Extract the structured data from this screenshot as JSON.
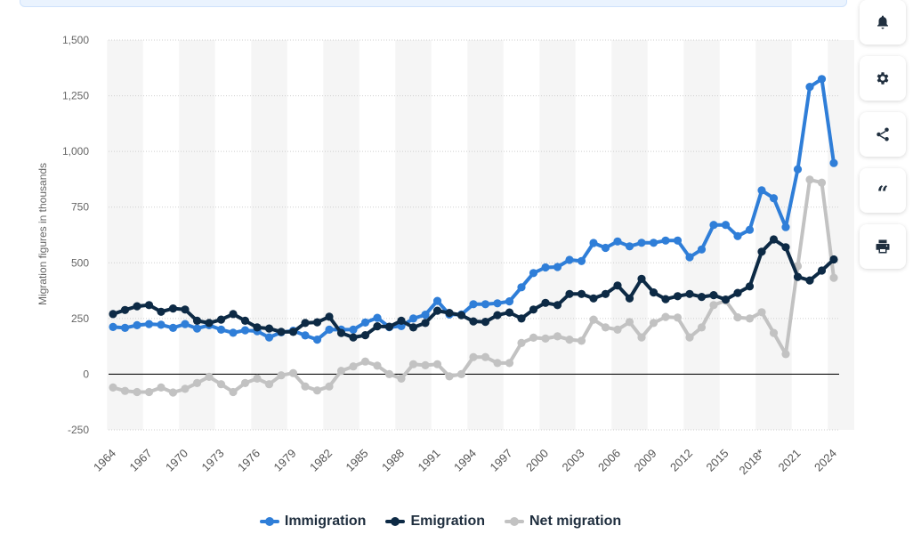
{
  "chart_data": {
    "type": "line",
    "ylabel": "Migration figures in thousands",
    "xlabel": "",
    "ylim": [
      -250,
      1500
    ],
    "yticks": [
      -250,
      0,
      250,
      500,
      750,
      1000,
      1250,
      1500
    ],
    "ytick_labels": [
      "-250",
      "0",
      "250",
      "500",
      "750",
      "1,000",
      "1,250",
      "1,500"
    ],
    "xtick_labels": [
      "1964",
      "1967",
      "1970",
      "1973",
      "1976",
      "1979",
      "1982",
      "1985",
      "1988",
      "1991",
      "1994",
      "1997",
      "2000",
      "2003",
      "2006",
      "2009",
      "2012",
      "2015",
      "2018*",
      "2021",
      "2024"
    ],
    "x": [
      "1964",
      "1965",
      "1966",
      "1967",
      "1968",
      "1969",
      "1970",
      "1971",
      "1972",
      "1973",
      "1974",
      "1975",
      "1976",
      "1977",
      "1978",
      "1979",
      "1980",
      "1981",
      "1982",
      "1983",
      "1984",
      "1985",
      "1986",
      "1987",
      "1988",
      "1989",
      "1990",
      "1991",
      "1992",
      "1993",
      "1994",
      "1995",
      "1996",
      "1997",
      "1998",
      "1999",
      "2000",
      "2001",
      "2002",
      "2003",
      "2004",
      "2005",
      "2006",
      "2007",
      "2008",
      "2009",
      "2010",
      "2011",
      "2012",
      "2013",
      "2014",
      "2015",
      "2016",
      "2017",
      "2018*",
      "2019",
      "2020",
      "2021",
      "2022",
      "2023",
      "2024"
    ],
    "grid": true,
    "alternating_bands": true,
    "legend_position": "bottom-center",
    "series": [
      {
        "name": "Immigration",
        "color": "#2f7ed8",
        "values": [
          212,
          208,
          220,
          225,
          222,
          208,
          225,
          205,
          220,
          200,
          186,
          197,
          193,
          165,
          188,
          195,
          174,
          155,
          200,
          200,
          200,
          232,
          253,
          211,
          216,
          250,
          267,
          329,
          268,
          268,
          314,
          314,
          318,
          327,
          390,
          454,
          479,
          481,
          513,
          508,
          589,
          567,
          596,
          574,
          590,
          590,
          600,
          600,
          525,
          560,
          670,
          670,
          620,
          648,
          825,
          790,
          660,
          920,
          1290,
          1325,
          948
        ]
      },
      {
        "name": "Emigration",
        "color": "#0d2a45",
        "values": [
          270,
          288,
          305,
          310,
          280,
          295,
          290,
          240,
          230,
          245,
          270,
          240,
          210,
          205,
          190,
          190,
          230,
          233,
          258,
          185,
          165,
          175,
          215,
          213,
          240,
          210,
          230,
          285,
          275,
          265,
          237,
          235,
          265,
          277,
          250,
          290,
          320,
          310,
          360,
          360,
          340,
          360,
          398,
          340,
          428,
          367,
          337,
          350,
          360,
          347,
          355,
          335,
          365,
          394,
          550,
          605,
          570,
          437,
          421,
          465,
          515
        ]
      },
      {
        "name": "Net migration",
        "color": "#c2c2c2",
        "values": [
          -60,
          -75,
          -80,
          -80,
          -60,
          -82,
          -66,
          -40,
          -12,
          -45,
          -80,
          -40,
          -20,
          -45,
          -5,
          5,
          -55,
          -73,
          -55,
          15,
          35,
          57,
          38,
          0,
          -20,
          45,
          40,
          45,
          -10,
          0,
          77,
          77,
          50,
          50,
          140,
          164,
          160,
          170,
          155,
          150,
          245,
          210,
          200,
          234,
          165,
          230,
          257,
          254,
          165,
          210,
          310,
          330,
          255,
          250,
          278,
          185,
          90,
          485,
          873,
          860,
          433
        ]
      }
    ]
  },
  "legend": {
    "items": [
      {
        "label": "Immigration",
        "color": "#2f7ed8"
      },
      {
        "label": "Emigration",
        "color": "#0d2a45"
      },
      {
        "label": "Net migration",
        "color": "#c2c2c2"
      }
    ]
  },
  "toolbar": {
    "buttons": [
      {
        "name": "notification",
        "icon": "bell-icon"
      },
      {
        "name": "settings",
        "icon": "gear-icon"
      },
      {
        "name": "share",
        "icon": "share-icon"
      },
      {
        "name": "cite",
        "icon": "quote-icon"
      },
      {
        "name": "print",
        "icon": "printer-icon"
      }
    ]
  }
}
